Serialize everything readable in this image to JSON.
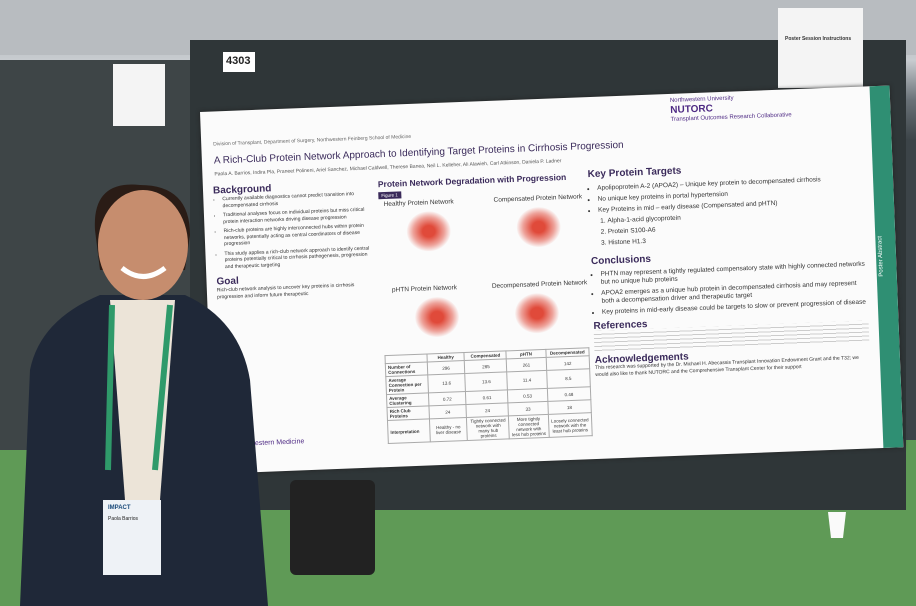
{
  "board_number": "4303",
  "instructions_sign": {
    "title": "Poster Session Instructions"
  },
  "poster": {
    "department": "Division of Transplant, Department of Surgery, Northwestern Feinberg School of Medicine",
    "title": "A Rich-Club Protein Network Approach to Identifying Target Proteins in Cirrhosis Progression",
    "authors": "Paola A. Barrios, Indira Pla, Praneet Polineni, Ariel Sanchez, Michael Caldwell, Therese Banea, Neil L. Kelleher, Ali Alawieh, Carl Atkinson, Daniela P. Ladner",
    "logo": {
      "university": "Northwestern University",
      "name": "NUTORC",
      "subtitle": "Transplant Outcomes Research Collaborative"
    },
    "background": {
      "heading": "Background",
      "items": [
        "Currently available diagnostics cannot predict transition into decompensated cirrhosis",
        "Traditional analyses focus on individual proteins but miss critical protein interaction networks driving disease progression",
        "Rich-club proteins are highly interconnected hubs within protein networks, potentially acting as central coordinators of disease progression",
        "This study applies a rich-club network approach to identify central proteins potentially critical to cirrhosis pathogenesis, progression and therapeutic targeting"
      ]
    },
    "goal": {
      "heading": "Goal",
      "text": "Rich-club network analysis to uncover key proteins in cirrhosis progression and inform future therapeutic"
    },
    "footer_logo": "Northwestern Medicine",
    "figure": {
      "heading": "Protein Network Degradation with Progression",
      "label": "Figure 1",
      "panels": [
        "Healthy Protein Network",
        "Compensated Protein Network",
        "pHTN Protein Network",
        "Decompensated Protein Network"
      ],
      "table": {
        "header": [
          "Healthy",
          "Compensated",
          "pHTN",
          "Decompensated"
        ],
        "rows": [
          [
            "Number of Connections",
            "296",
            "285",
            "261",
            "142"
          ],
          [
            "Average Connection per Protein",
            "13.6",
            "13.6",
            "11.4",
            "8.5"
          ],
          [
            "Average Clustering",
            "0.72",
            "0.61",
            "0.53",
            "0.48"
          ],
          [
            "Rich Club Proteins",
            "24",
            "24",
            "33",
            "18"
          ],
          [
            "Interpretation",
            "Healthy - no liver disease",
            "Tightly connected network with many hub proteins",
            "More tightly connected network with less hub proteins",
            "Loosely connected network with the least hub proteins"
          ]
        ]
      }
    },
    "key_targets": {
      "heading": "Key Protein Targets",
      "items": [
        "Apolipoprotein A-2 (APOA2) – Unique key protein to decompensated cirrhosis",
        "No unique key proteins in portal hypertension",
        "Key Proteins in mid – early disease (Compensated and pHTN)"
      ],
      "sub_items": [
        "Alpha-1-acid glycoprotein",
        "Protein S100-A6",
        "Histone H1.3"
      ]
    },
    "conclusions": {
      "heading": "Conclusions",
      "items": [
        "PHTN may represent a tightly regulated compensatory state with highly connected networks but no unique hub proteins",
        "APOA2 emerges as a unique hub protein in decompensated cirrhosis and may represent both a decompensation driver and therapeutic target",
        "Key proteins in mid-early disease could be targets to slow or prevent progression of disease"
      ]
    },
    "references": {
      "heading": "References"
    },
    "acknowledgements": {
      "heading": "Acknowledgements",
      "text": "This research was supported by the Dr. Michael H. Abecassis Transplant Innovation Endowment Grant and the T32; we would also like to thank NUTORC and the Comprehensive Transplant Center for their support"
    },
    "side_banner": "Poster Abstract"
  },
  "badge": {
    "event": "IMPACT",
    "name": "Paola Barrios"
  }
}
